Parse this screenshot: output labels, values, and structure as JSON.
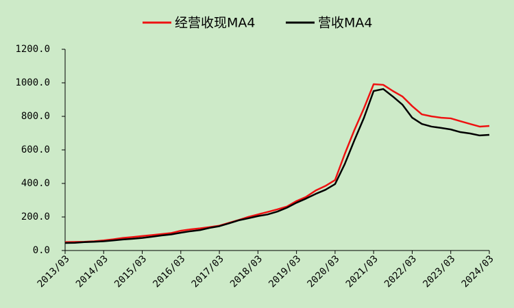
{
  "chart_data": {
    "type": "line",
    "categories": [
      "2013/03",
      null,
      null,
      null,
      "2014/03",
      null,
      null,
      null,
      "2015/03",
      null,
      null,
      null,
      "2016/03",
      null,
      null,
      null,
      "2017/03",
      null,
      null,
      null,
      "2018/03",
      null,
      null,
      null,
      "2019/03",
      null,
      null,
      null,
      "2020/03",
      null,
      null,
      null,
      "2021/03",
      null,
      null,
      null,
      "2022/03",
      null,
      null,
      null,
      "2023/03",
      null,
      null,
      null,
      "2024/03"
    ],
    "series": [
      {
        "name": "经营收现MA4",
        "color": "#ee1111",
        "values": [
          50,
          51,
          52,
          55,
          60,
          67,
          75,
          80,
          86,
          92,
          98,
          104,
          118,
          126,
          132,
          140,
          148,
          165,
          182,
          200,
          215,
          230,
          245,
          262,
          295,
          320,
          358,
          385,
          420,
          575,
          718,
          849,
          992,
          988,
          951,
          918,
          861,
          812,
          800,
          792,
          788,
          771,
          755,
          739,
          743
        ]
      },
      {
        "name": "营收MA4",
        "color": "#000000",
        "values": [
          45,
          46,
          50,
          52,
          55,
          60,
          66,
          70,
          75,
          82,
          90,
          96,
          106,
          115,
          122,
          135,
          145,
          162,
          180,
          192,
          205,
          215,
          232,
          255,
          285,
          310,
          338,
          362,
          396,
          515,
          657,
          792,
          951,
          963,
          918,
          869,
          792,
          755,
          739,
          731,
          722,
          706,
          698,
          686,
          690
        ]
      }
    ],
    "ylim": [
      0,
      1200
    ],
    "yticks": [
      {
        "value": 0,
        "label": "0.0"
      },
      {
        "value": 200,
        "label": "200.0"
      },
      {
        "value": 400,
        "label": "400.0"
      },
      {
        "value": 600,
        "label": "600.0"
      },
      {
        "value": 800,
        "label": "800.0"
      },
      {
        "value": 1000,
        "label": "1000.0"
      },
      {
        "value": 1200,
        "label": "1200.0"
      }
    ],
    "grid": false,
    "legend": "top"
  }
}
